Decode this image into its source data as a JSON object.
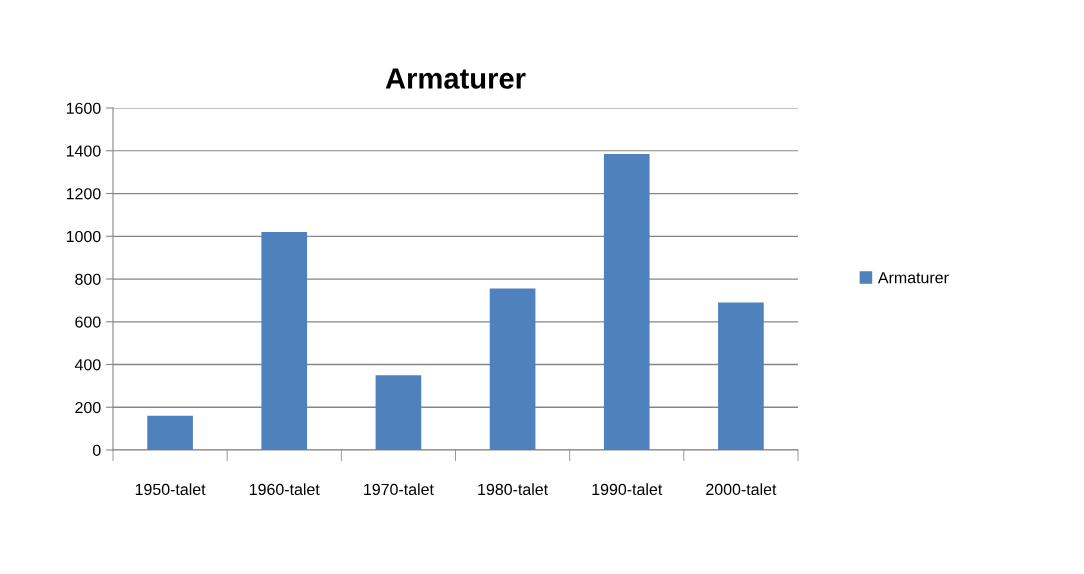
{
  "chart_data": {
    "type": "bar",
    "title": "Armaturer",
    "categories": [
      "1950-talet",
      "1960-talet",
      "1970-talet",
      "1980-talet",
      "1990-talet",
      "2000-talet"
    ],
    "series": [
      {
        "name": "Armaturer",
        "color": "#4f81bd",
        "values": [
          160,
          1020,
          350,
          755,
          1385,
          690
        ]
      }
    ],
    "ylim": [
      0,
      1600
    ],
    "yticks": [
      0,
      200,
      400,
      600,
      800,
      1000,
      1200,
      1400,
      1600
    ],
    "grid": "y",
    "legend": "right"
  }
}
